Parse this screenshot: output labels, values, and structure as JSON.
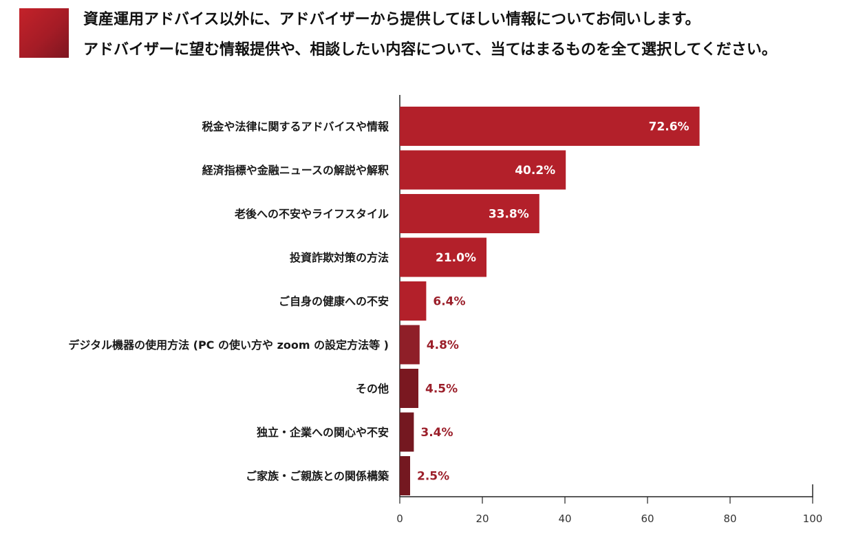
{
  "header": {
    "line1": "資産運用アドバイス以外に、アドバイザーから提供してほしい情報についてお伺いします。",
    "line2": "アドバイザーに望む情報提供や、相談したい内容について、当てはまるものを全て選択してください。",
    "accent_color": "#b3202a"
  },
  "chart_data": {
    "type": "bar",
    "orientation": "horizontal",
    "categories": [
      "税金や法律に関するアドバイスや情報",
      "経済指標や金融ニュースの解説や解釈",
      "老後への不安やライフスタイル",
      "投資詐欺対策の方法",
      "ご自身の健康への不安",
      "デジタル機器の使用方法 (PC の使い方や zoom の設定方法等 )",
      "その他",
      "独立・企業への関心や不安",
      "ご家族・ご親族との関係構築"
    ],
    "values": [
      72.6,
      40.2,
      33.8,
      21.0,
      6.4,
      4.8,
      4.5,
      3.4,
      2.5
    ],
    "value_labels": [
      "72.6%",
      "40.2%",
      "33.8%",
      "21.0%",
      "6.4%",
      "4.8%",
      "4.5%",
      "3.4%",
      "2.5%"
    ],
    "bar_colors": [
      "#b3202a",
      "#b3202a",
      "#b3202a",
      "#b3202a",
      "#b3202a",
      "#8f1f28",
      "#7a1820",
      "#741820",
      "#741820"
    ],
    "xlim": [
      0,
      100
    ],
    "xticks": [
      0,
      20,
      40,
      60,
      80,
      100
    ],
    "grid": false,
    "title": "",
    "xlabel": "",
    "ylabel": ""
  }
}
